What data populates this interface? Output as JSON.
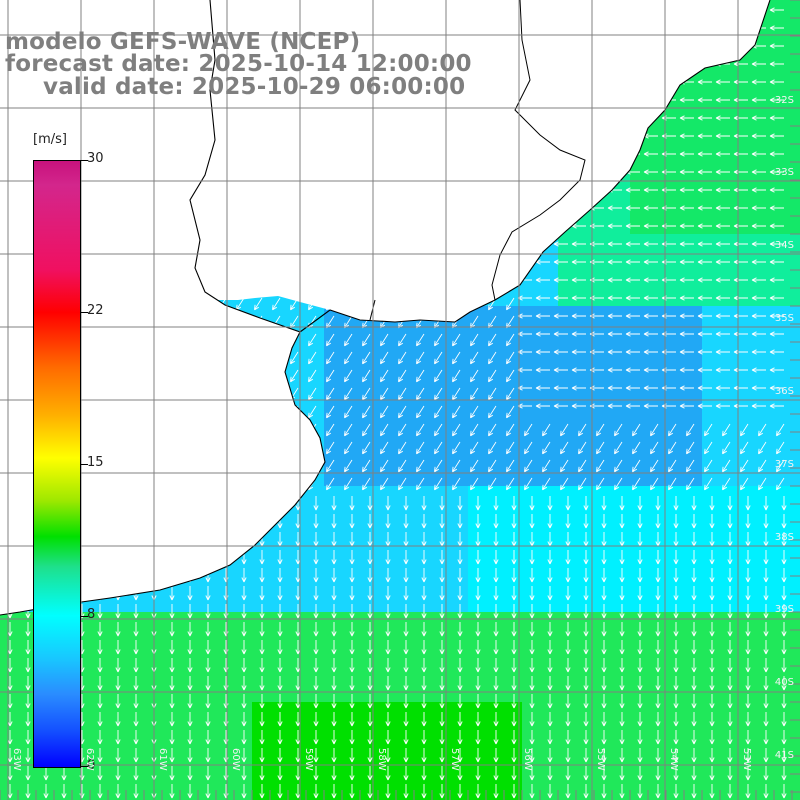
{
  "title": {
    "line1": "modelo GEFS-WAVE (NCEP)",
    "line2": "forecast date: 2025-10-14 12:00:00",
    "line3": "valid date: 2025-10-29 06:00:00"
  },
  "colorbar": {
    "unit": "[m/s]",
    "ticks": [
      "30",
      "22",
      "15",
      "8",
      "0"
    ]
  },
  "lat_labels": [
    "32S",
    "33S",
    "34S",
    "35S",
    "36S",
    "37S",
    "38S",
    "39S",
    "40S",
    "41S"
  ],
  "lon_labels": [
    "63W",
    "62W",
    "61W",
    "60W",
    "59W",
    "58W",
    "57W",
    "56W",
    "55W",
    "54W",
    "53W"
  ],
  "colors": {
    "land": "#ffffff",
    "coast": "#000000",
    "grid": "#808080",
    "arrows": "#ffffff",
    "field_low": "#2a8cff",
    "field_mid": "#00ffff",
    "field_high": "#00e000"
  },
  "icons": {
    "wind_arrow": "arrow-icon"
  }
}
